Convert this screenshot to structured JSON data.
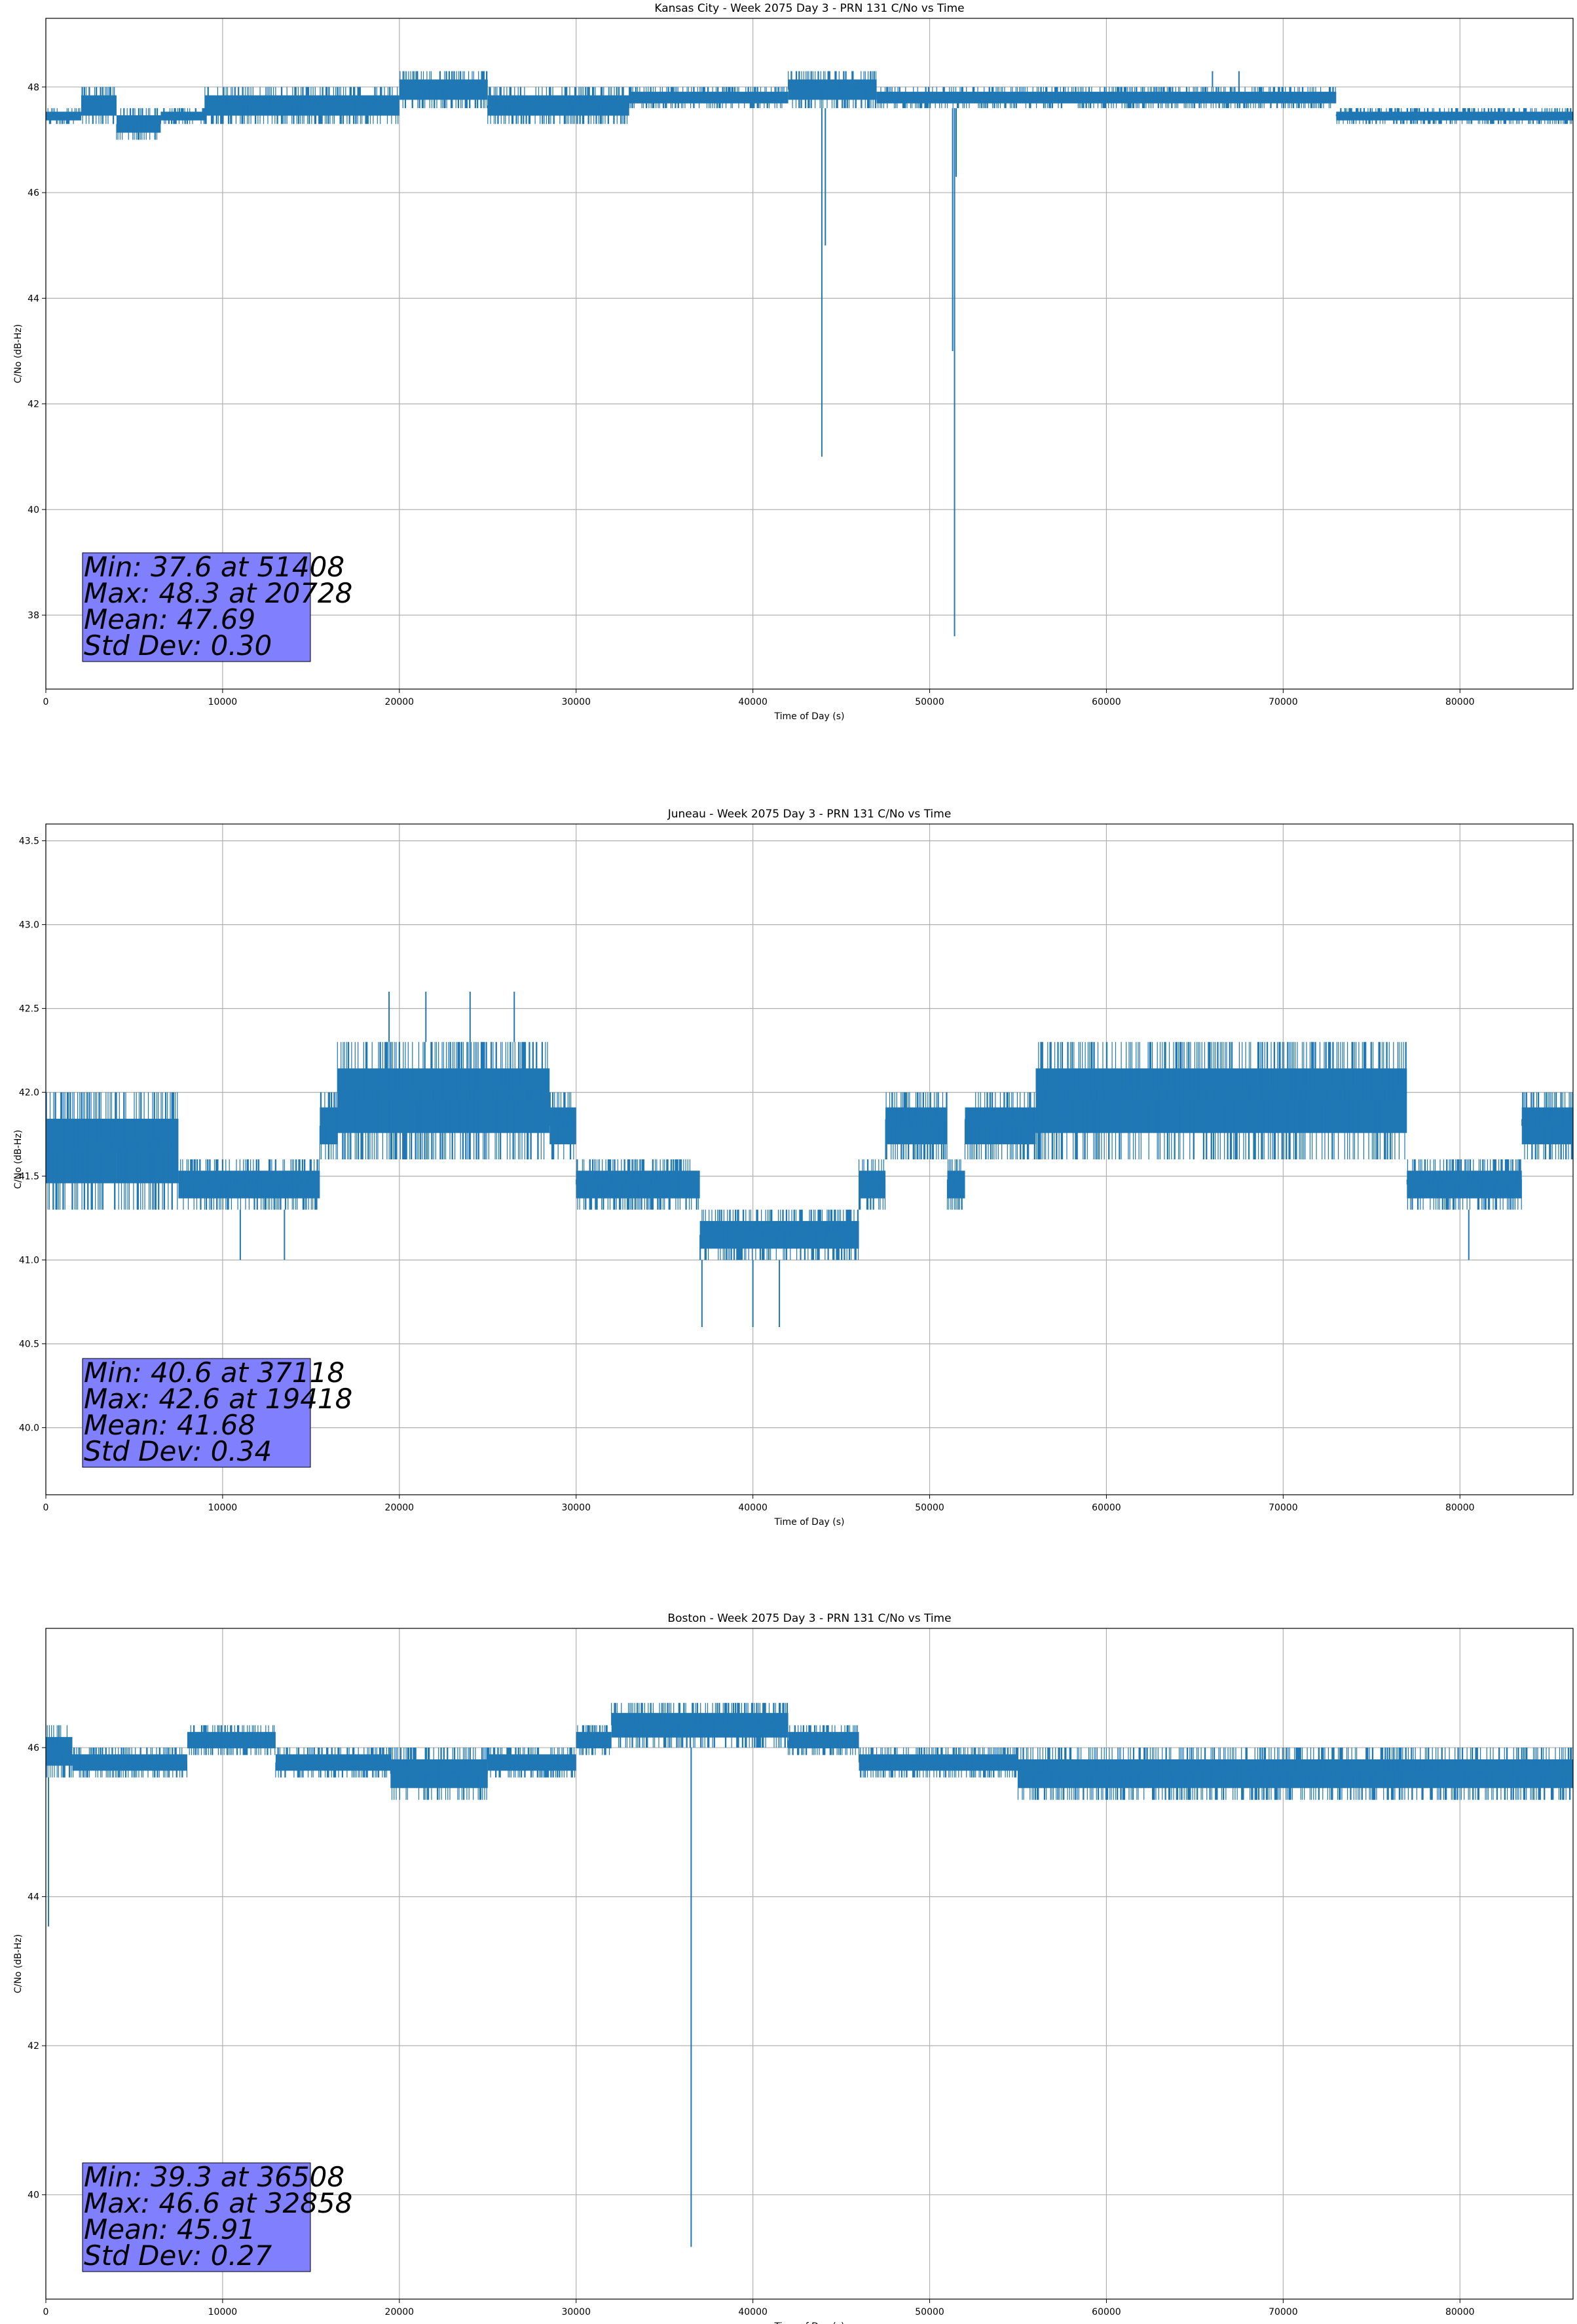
{
  "chart_data": [
    {
      "type": "line",
      "title": "Kansas City - Week 2075 Day 3 - PRN 131 C/No vs Time",
      "xlabel": "Time of Day (s)",
      "ylabel": "C/No (dB-Hz)",
      "xlim": [
        0,
        86400
      ],
      "ylim": [
        36.6,
        49.3
      ],
      "xticks": [
        0,
        10000,
        20000,
        30000,
        40000,
        50000,
        60000,
        70000,
        80000
      ],
      "yticks": [
        38,
        40,
        42,
        44,
        46,
        48
      ],
      "ytick_labels": [
        "38",
        "40",
        "42",
        "44",
        "46",
        "48"
      ],
      "grid": true,
      "line_color": "#1f77b4",
      "band_segments": [
        [
          0,
          2000,
          47.3,
          47.6
        ],
        [
          2000,
          4000,
          47.3,
          48.0
        ],
        [
          4000,
          6500,
          47.0,
          47.6
        ],
        [
          6500,
          9000,
          47.3,
          47.6
        ],
        [
          9000,
          20000,
          47.3,
          48.0
        ],
        [
          20000,
          25000,
          47.6,
          48.3
        ],
        [
          25000,
          33000,
          47.3,
          48.0
        ],
        [
          33000,
          42000,
          47.6,
          48.0
        ],
        [
          42000,
          47000,
          47.6,
          48.3
        ],
        [
          47000,
          57000,
          47.6,
          48.0
        ],
        [
          57000,
          73000,
          47.6,
          48.0
        ],
        [
          73000,
          86400,
          47.3,
          47.6
        ]
      ],
      "dips": [
        [
          43900,
          41.0
        ],
        [
          44100,
          45.0
        ],
        [
          51300,
          43.0
        ],
        [
          51408,
          37.6
        ],
        [
          51500,
          46.3
        ]
      ],
      "spikes": [
        [
          20728,
          48.3
        ],
        [
          22000,
          48.3
        ],
        [
          43000,
          48.3
        ],
        [
          45500,
          48.3
        ],
        [
          66000,
          48.3
        ],
        [
          67500,
          48.3
        ]
      ],
      "stats": {
        "min": "Min: 37.6 at 51408",
        "max": "Max: 48.3 at 20728",
        "mean": "Mean: 47.69",
        "std": "Std Dev: 0.30"
      },
      "stats_box_color": "#8080ff"
    },
    {
      "type": "line",
      "title": "Juneau - Week 2075 Day 3 - PRN 131 C/No vs Time",
      "xlabel": "Time of Day (s)",
      "ylabel": "C/No (dB-Hz)",
      "xlim": [
        0,
        86400
      ],
      "ylim": [
        39.6,
        43.6
      ],
      "xticks": [
        0,
        10000,
        20000,
        30000,
        40000,
        50000,
        60000,
        70000,
        80000
      ],
      "yticks": [
        40.0,
        40.5,
        41.0,
        41.5,
        42.0,
        42.5,
        43.0,
        43.5
      ],
      "ytick_labels": [
        "40.0",
        "40.5",
        "41.0",
        "41.5",
        "42.0",
        "42.5",
        "43.0",
        "43.5"
      ],
      "grid": true,
      "line_color": "#1f77b4",
      "band_segments": [
        [
          0,
          4000,
          41.3,
          42.0
        ],
        [
          4000,
          7500,
          41.3,
          42.0
        ],
        [
          7500,
          15500,
          41.3,
          41.6
        ],
        [
          15500,
          16500,
          41.6,
          42.0
        ],
        [
          16500,
          28500,
          41.6,
          42.3
        ],
        [
          28500,
          30000,
          41.6,
          42.0
        ],
        [
          30000,
          37000,
          41.3,
          41.6
        ],
        [
          37000,
          46000,
          41.0,
          41.3
        ],
        [
          46000,
          47500,
          41.3,
          41.6
        ],
        [
          47500,
          51000,
          41.6,
          42.0
        ],
        [
          51000,
          52000,
          41.3,
          41.6
        ],
        [
          52000,
          56000,
          41.6,
          42.0
        ],
        [
          56000,
          77000,
          41.6,
          42.3
        ],
        [
          77000,
          83500,
          41.3,
          41.6
        ],
        [
          83500,
          86400,
          41.6,
          42.0
        ]
      ],
      "dips": [
        [
          37118,
          40.6
        ],
        [
          40000,
          40.6
        ],
        [
          41500,
          40.6
        ],
        [
          11000,
          41.0
        ],
        [
          13500,
          41.0
        ],
        [
          80500,
          41.0
        ]
      ],
      "spikes": [
        [
          19418,
          42.6
        ],
        [
          21500,
          42.6
        ],
        [
          24000,
          42.6
        ],
        [
          26500,
          42.6
        ]
      ],
      "stats": {
        "min": "Min: 40.6 at 37118",
        "max": "Max: 42.6 at 19418",
        "mean": "Mean: 41.68",
        "std": "Std Dev: 0.34"
      },
      "stats_box_color": "#8080ff"
    },
    {
      "type": "line",
      "title": "Boston - Week 2075 Day 3 - PRN 131 C/No vs Time",
      "xlabel": "Time of Day (s)",
      "ylabel": "C/No (dB-Hz)",
      "xlim": [
        0,
        86400
      ],
      "ylim": [
        38.6,
        47.6
      ],
      "xticks": [
        0,
        10000,
        20000,
        30000,
        40000,
        50000,
        60000,
        70000,
        80000
      ],
      "yticks": [
        40,
        42,
        44,
        46
      ],
      "ytick_labels": [
        "40",
        "42",
        "44",
        "46"
      ],
      "grid": true,
      "line_color": "#1f77b4",
      "band_segments": [
        [
          0,
          1500,
          45.6,
          46.3
        ],
        [
          1500,
          8000,
          45.6,
          46.0
        ],
        [
          8000,
          13000,
          45.9,
          46.3
        ],
        [
          13000,
          19500,
          45.6,
          46.0
        ],
        [
          19500,
          25000,
          45.3,
          46.0
        ],
        [
          25000,
          30000,
          45.6,
          46.0
        ],
        [
          30000,
          32000,
          45.9,
          46.3
        ],
        [
          32000,
          42000,
          46.0,
          46.6
        ],
        [
          42000,
          46000,
          45.9,
          46.3
        ],
        [
          46000,
          55000,
          45.6,
          46.0
        ],
        [
          55000,
          86400,
          45.3,
          46.0
        ]
      ],
      "dips": [
        [
          150,
          43.6
        ],
        [
          36508,
          39.3
        ]
      ],
      "spikes": [
        [
          32858,
          46.6
        ],
        [
          36000,
          46.6
        ],
        [
          39500,
          46.6
        ]
      ],
      "stats": {
        "min": "Min: 39.3 at 36508",
        "max": "Max: 46.6 at 32858",
        "mean": "Mean: 45.91",
        "std": "Std Dev: 0.27"
      },
      "stats_box_color": "#8080ff"
    }
  ]
}
